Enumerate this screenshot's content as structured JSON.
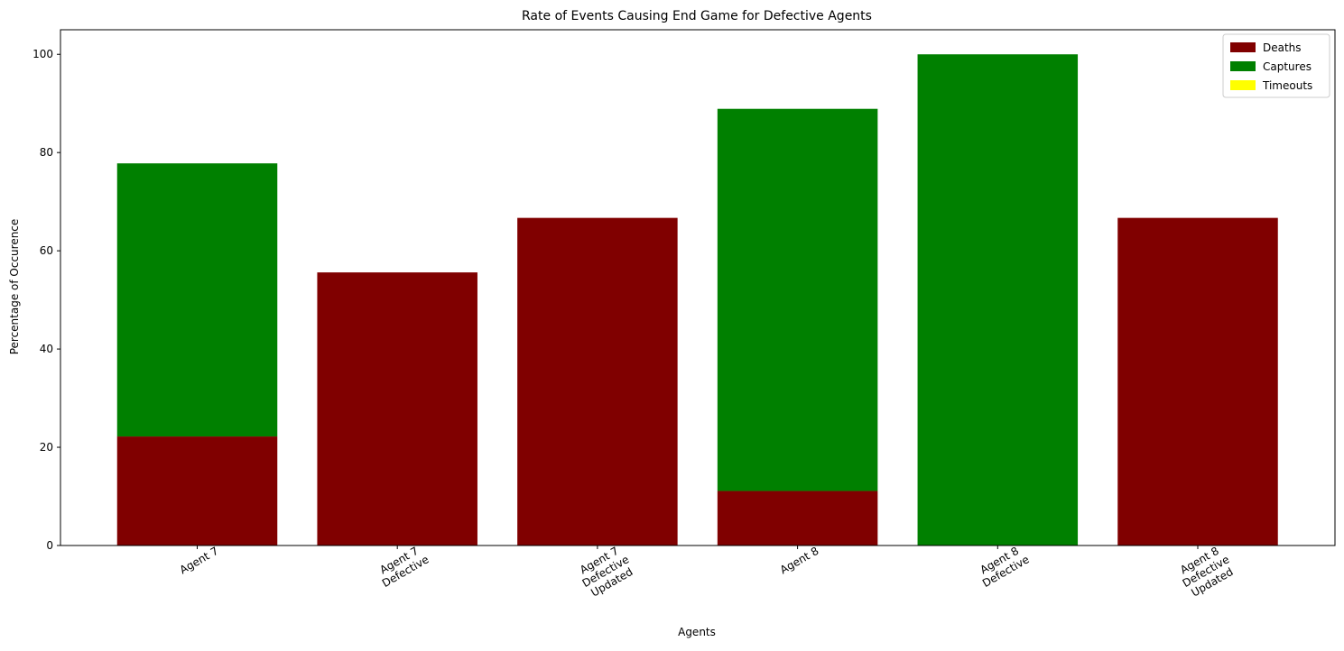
{
  "chart_data": {
    "type": "bar",
    "stacked": true,
    "title": "Rate of Events Causing End Game for Defective Agents",
    "xlabel": "Agents",
    "ylabel": "Percentage of Occurence",
    "ylim": [
      0,
      105
    ],
    "yticks": [
      0,
      20,
      40,
      60,
      80,
      100
    ],
    "grid": false,
    "legend_position": "top-right",
    "categories": [
      "Agent 7",
      "Agent 7\nDefective",
      "Agent 7\nDefective\nUpdated",
      "Agent 8",
      "Agent 8\nDefective",
      "Agent 8\nDefective\nUpdated"
    ],
    "series": [
      {
        "name": "Deaths",
        "color": "#800000",
        "values": [
          22.2,
          55.6,
          66.7,
          11.1,
          0,
          66.7
        ]
      },
      {
        "name": "Captures",
        "color": "#008000",
        "values": [
          55.6,
          0,
          0,
          77.8,
          100,
          0
        ]
      },
      {
        "name": "Timeouts",
        "color": "#ffff00",
        "values": [
          0,
          0,
          0,
          0,
          0,
          0
        ]
      }
    ]
  }
}
